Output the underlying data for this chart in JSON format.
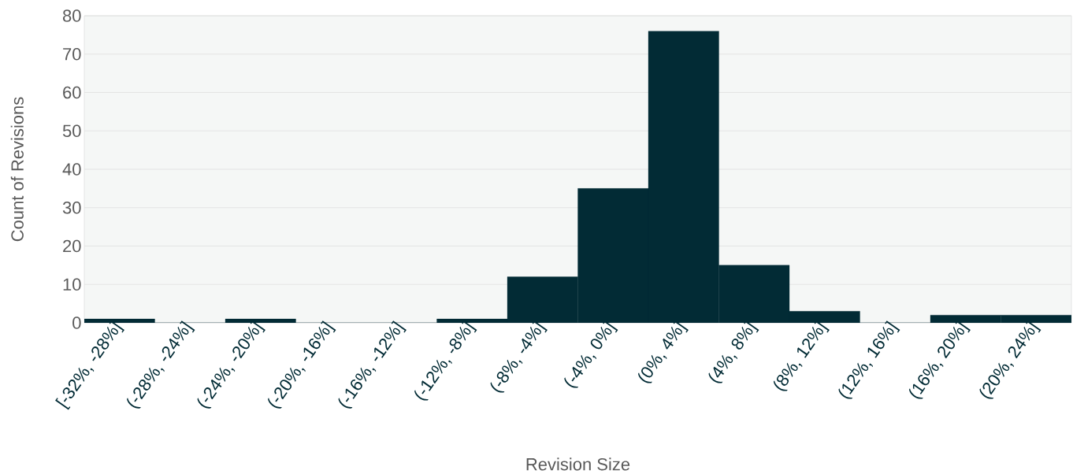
{
  "chart_data": {
    "type": "bar",
    "xlabel": "Revision Size",
    "ylabel": "Count of Revisions",
    "categories": [
      "[-32%, -28%]",
      "(-28%, -24%]",
      "(-24%, -20%]",
      "(-20%, -16%]",
      "(-16%, -12%]",
      "(-12%, -8%]",
      "(-8%, -4%]",
      "(-4%, 0%]",
      "(0%, 4%]",
      "(4%, 8%]",
      "(8%, 12%]",
      "(12%, 16%]",
      "(16%, 20%]",
      "(20%, 24%]"
    ],
    "values": [
      1,
      0,
      1,
      0,
      0,
      1,
      12,
      35,
      76,
      15,
      3,
      0,
      2,
      2
    ],
    "color": "#022b35",
    "ylim": [
      0,
      80
    ],
    "yticks": [
      0,
      10,
      20,
      30,
      40,
      50,
      60,
      70,
      80
    ],
    "grid": "y"
  }
}
